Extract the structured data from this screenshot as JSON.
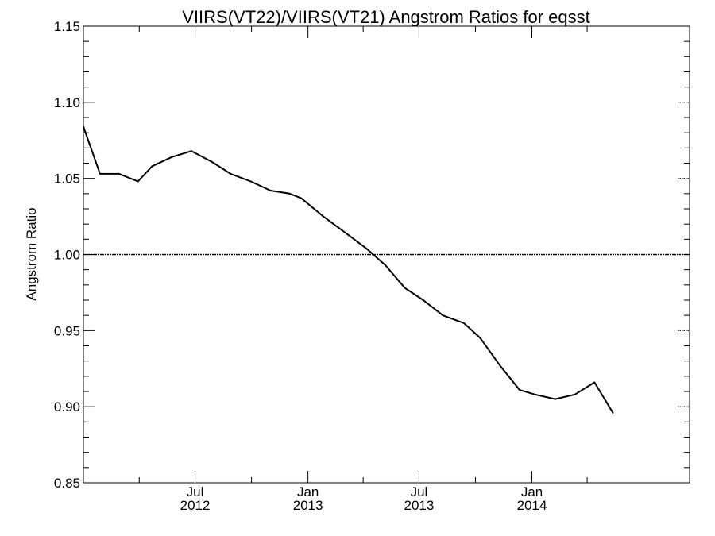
{
  "chart_data": {
    "type": "line",
    "title": "VIIRS(VT22)/VIIRS(VT21)  Angstrom Ratios for eqsst",
    "xlabel": "",
    "ylabel": "Angstrom Ratio",
    "xlim": [
      "2012-01-01",
      "2014-09-15"
    ],
    "ylim": [
      0.85,
      1.15
    ],
    "yticks": [
      0.85,
      0.9,
      0.95,
      1.0,
      1.05,
      1.1,
      1.15
    ],
    "ytick_labels": [
      "0.85",
      "0.90",
      "0.95",
      "1.00",
      "1.05",
      "1.10",
      "1.15"
    ],
    "xticks": [
      {
        "date": "2012-07-01",
        "label": "Jul",
        "year": "2012"
      },
      {
        "date": "2013-01-01",
        "label": "Jan",
        "year": "2013"
      },
      {
        "date": "2013-07-01",
        "label": "Jul",
        "year": "2013"
      },
      {
        "date": "2014-01-01",
        "label": "Jan",
        "year": "2014"
      }
    ],
    "reference_line": {
      "y": 1.0,
      "style": "dotted"
    },
    "series": [
      {
        "color": "#000000",
        "points": [
          {
            "x": "2012-01-01",
            "y": 1.084
          },
          {
            "x": "2012-01-28",
            "y": 1.053
          },
          {
            "x": "2012-02-28",
            "y": 1.053
          },
          {
            "x": "2012-03-30",
            "y": 1.048
          },
          {
            "x": "2012-04-22",
            "y": 1.058
          },
          {
            "x": "2012-05-24",
            "y": 1.064
          },
          {
            "x": "2012-06-25",
            "y": 1.068
          },
          {
            "x": "2012-07-28",
            "y": 1.061
          },
          {
            "x": "2012-08-28",
            "y": 1.053
          },
          {
            "x": "2012-09-30",
            "y": 1.048
          },
          {
            "x": "2012-11-01",
            "y": 1.042
          },
          {
            "x": "2012-12-02",
            "y": 1.04
          },
          {
            "x": "2012-12-21",
            "y": 1.037
          },
          {
            "x": "2013-01-26",
            "y": 1.025
          },
          {
            "x": "2013-03-04",
            "y": 1.014
          },
          {
            "x": "2013-04-06",
            "y": 1.004
          },
          {
            "x": "2013-05-07",
            "y": 0.993
          },
          {
            "x": "2013-06-08",
            "y": 0.978
          },
          {
            "x": "2013-07-08",
            "y": 0.97
          },
          {
            "x": "2013-08-09",
            "y": 0.96
          },
          {
            "x": "2013-09-12",
            "y": 0.955
          },
          {
            "x": "2013-10-09",
            "y": 0.945
          },
          {
            "x": "2013-11-10",
            "y": 0.927
          },
          {
            "x": "2013-12-12",
            "y": 0.911
          },
          {
            "x": "2014-01-06",
            "y": 0.908
          },
          {
            "x": "2014-02-08",
            "y": 0.905
          },
          {
            "x": "2014-03-12",
            "y": 0.908
          },
          {
            "x": "2014-04-13",
            "y": 0.916
          },
          {
            "x": "2014-05-13",
            "y": 0.896
          }
        ]
      }
    ],
    "grid": false,
    "legend": "none"
  }
}
